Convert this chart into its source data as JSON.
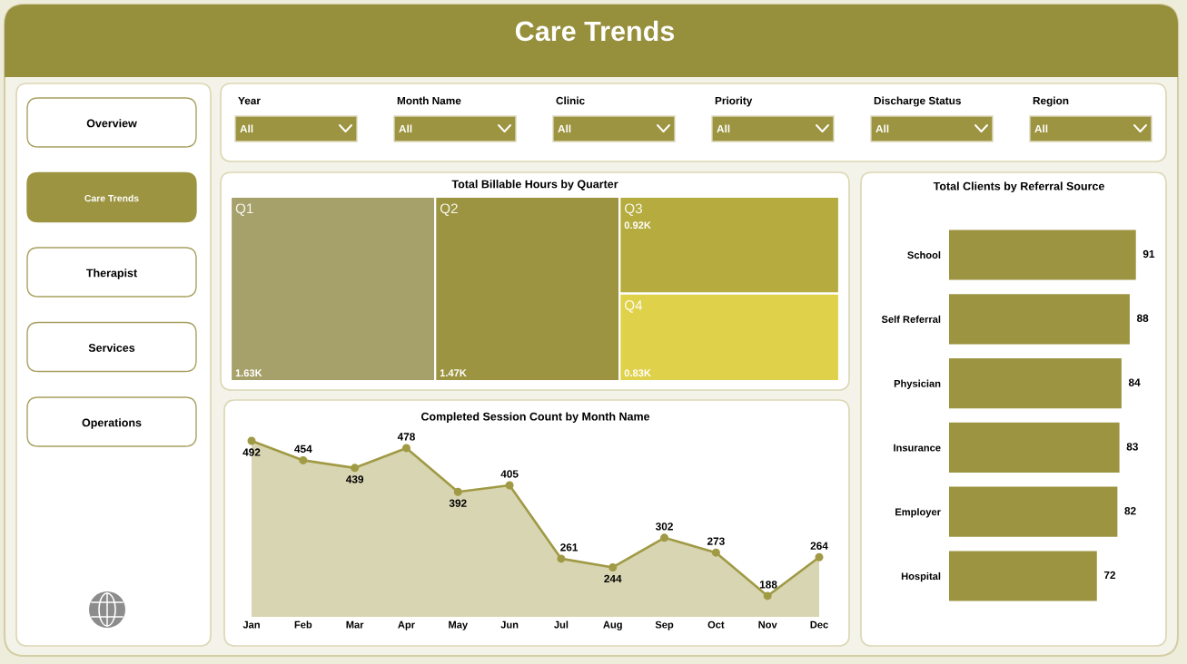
{
  "chart_data": [
    {
      "type": "other",
      "title": "Care Trends"
    },
    {
      "type": "other",
      "categories": [
        "Overview",
        "Care Trends",
        "Therapist",
        "Services",
        "Operations"
      ],
      "colors": [
        "#ffffff",
        "#9c9440",
        "#ffffff",
        "#ffffff",
        "#ffffff"
      ]
    },
    {
      "type": "other",
      "annotations": [
        "Year",
        "All",
        "Month Name",
        "All",
        "Clinic",
        "All",
        "Priority",
        "All",
        "Discharge Status",
        "All",
        "Region",
        "All"
      ],
      "color": "#9c9440"
    },
    {
      "type": "other",
      "title": "Total Billable Hours by Quarter",
      "categories": [
        "Q1",
        "Q2",
        "Q3",
        "Q4"
      ],
      "values": [
        1630,
        1470,
        920,
        830
      ],
      "value_labels": [
        "1.63K",
        "1.47K",
        "0.92K",
        "0.83K"
      ],
      "colors": [
        "#a6a06a",
        "#9c9440",
        "#b5ab3e",
        "#dfd14a"
      ]
    },
    {
      "type": "bar",
      "orientation": "horizontal",
      "title": "Total Clients by Referral Source",
      "categories": [
        "School",
        "Self Referral",
        "Physician",
        "Insurance",
        "Employer",
        "Hospital"
      ],
      "values": [
        91,
        88,
        84,
        83,
        82,
        72
      ],
      "color": "#9c9440",
      "data_labels": true,
      "tick_labels": "y"
    },
    {
      "type": "area",
      "title": "Completed Session Count by Month Name",
      "categories": [
        "Jan",
        "Feb",
        "Mar",
        "Apr",
        "May",
        "Jun",
        "Jul",
        "Aug",
        "Sep",
        "Oct",
        "Nov",
        "Dec"
      ],
      "values": [
        492,
        454,
        439,
        478,
        392,
        405,
        261,
        244,
        302,
        273,
        188,
        264
      ],
      "color": "#a09a45",
      "data_labels": true,
      "marker": "circle",
      "tick_labels": "x"
    }
  ]
}
